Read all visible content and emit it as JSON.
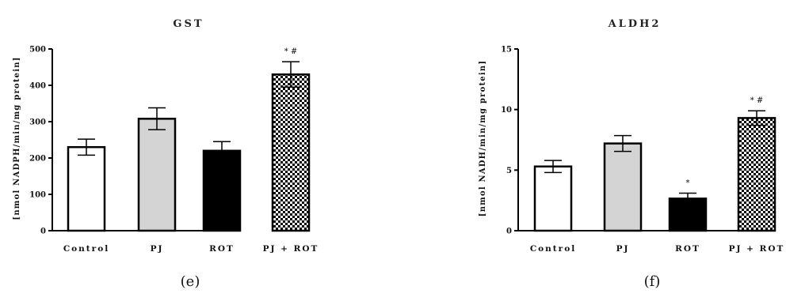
{
  "colors": {
    "bar_edge": "#000000",
    "control": "#ffffff",
    "pj": "#d4d4d4",
    "rot": "#000000",
    "pjrot": "checkered"
  },
  "chart_data": [
    {
      "type": "bar",
      "title": "GST",
      "panel_label": "(e)",
      "ylabel": "[nmol NADPH/min/mg protein]",
      "xlabel": "",
      "categories": [
        "Control",
        "PJ",
        "ROT",
        "PJ + ROT"
      ],
      "values": [
        230,
        308,
        220,
        430
      ],
      "errors": [
        22,
        30,
        25,
        35
      ],
      "annotations": [
        "",
        "",
        "",
        "* #"
      ],
      "ylim": [
        0,
        500
      ],
      "yticks": [
        0,
        100,
        200,
        300,
        400,
        500
      ],
      "grid": false,
      "legend": "none"
    },
    {
      "type": "bar",
      "title": "ALDH2",
      "panel_label": "(f)",
      "ylabel": "[nmol NADH/min/mg protein]",
      "xlabel": "",
      "categories": [
        "Control",
        "PJ",
        "ROT",
        "PJ + ROT"
      ],
      "values": [
        5.3,
        7.2,
        2.65,
        9.3
      ],
      "errors": [
        0.5,
        0.65,
        0.45,
        0.6
      ],
      "annotations": [
        "",
        "",
        "*",
        "* #"
      ],
      "ylim": [
        0,
        15
      ],
      "yticks": [
        0,
        5,
        10,
        15
      ],
      "grid": false,
      "legend": "none"
    }
  ]
}
